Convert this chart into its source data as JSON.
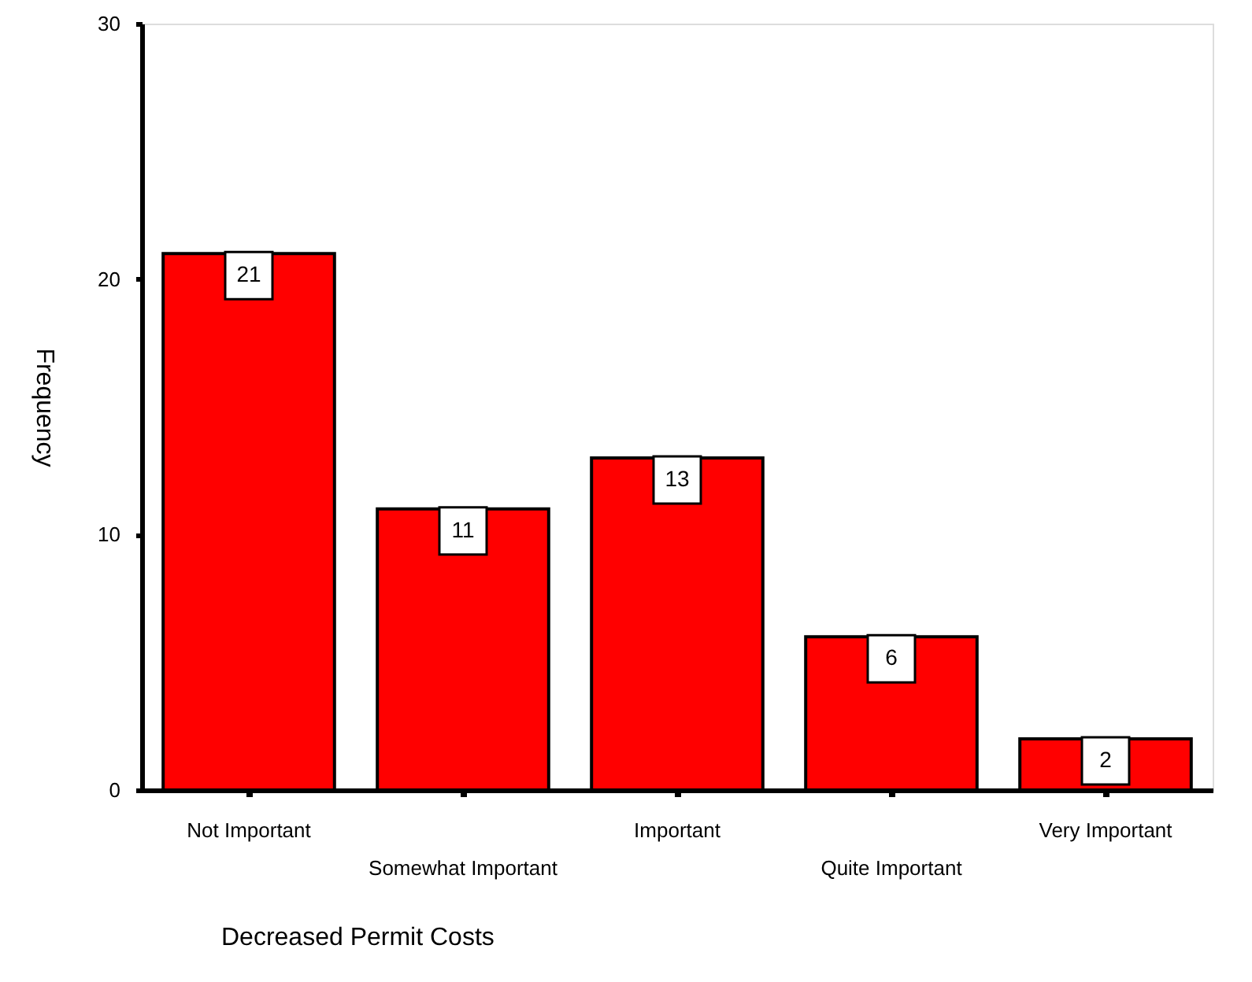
{
  "chart_data": {
    "type": "bar",
    "xlabel": "Decreased Permit Costs",
    "ylabel": "Frequency",
    "categories": [
      "Not Important",
      "Somewhat Important",
      "Important",
      "Quite Important",
      "Very Important"
    ],
    "values": [
      21,
      11,
      13,
      6,
      2
    ],
    "color": "#ff0000",
    "data_labels": true,
    "ylim": [
      0,
      30
    ],
    "yticks": [
      0,
      10,
      20,
      30
    ],
    "grid": false
  }
}
